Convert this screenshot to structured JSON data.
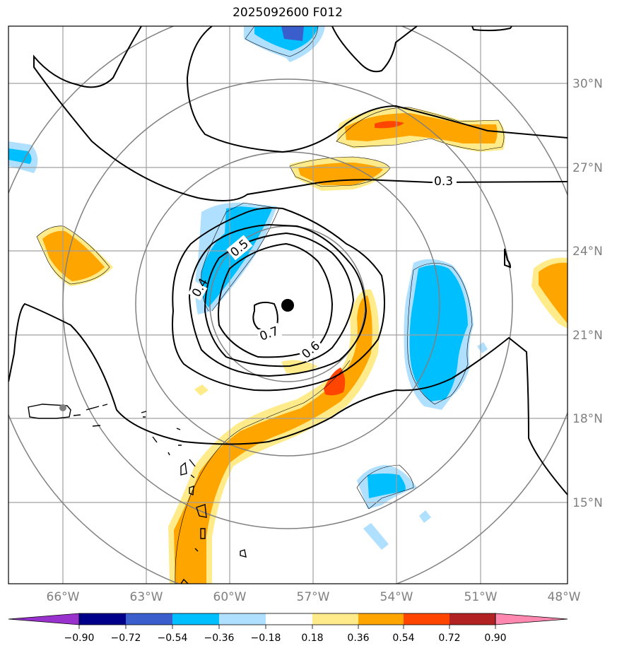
{
  "title": "2025092600 F012",
  "lat_labels": [
    "30°N",
    "27°N",
    "24°N",
    "21°N",
    "18°N",
    "15°N"
  ],
  "lon_labels": [
    "66°W",
    "63°W",
    "60°W",
    "57°W",
    "54°W",
    "51°W",
    "48°W"
  ],
  "colorbar_labels": [
    "−0.90",
    "−0.72",
    "−0.54",
    "−0.36",
    "−0.18",
    "0.18",
    "0.36",
    "0.54",
    "0.72",
    "0.90"
  ],
  "colorbar_colors": [
    "#9932cc",
    "#00008b",
    "#3a5fcd",
    "#00bfff",
    "#b0e0ff",
    "#ffffff",
    "#ffeb8a",
    "#ffa500",
    "#ff4500",
    "#b22222",
    "#ff88b0"
  ],
  "contour_labels": [
    "0.3",
    "0.4",
    "0.5",
    "0.6",
    "0.7"
  ],
  "colors": {
    "grid": "#a0a0a0",
    "range_rings": "#808080",
    "contour": "#000000",
    "positive_light": "#ffeb8a",
    "positive_mid": "#ffa500",
    "positive_strong": "#ff4500",
    "negative_light": "#b0e0ff",
    "negative_mid": "#00bfff",
    "negative_strong": "#3a5fcd"
  },
  "markers": {
    "storm_center": "storm-center-dot",
    "reference_point": "gray-point"
  }
}
